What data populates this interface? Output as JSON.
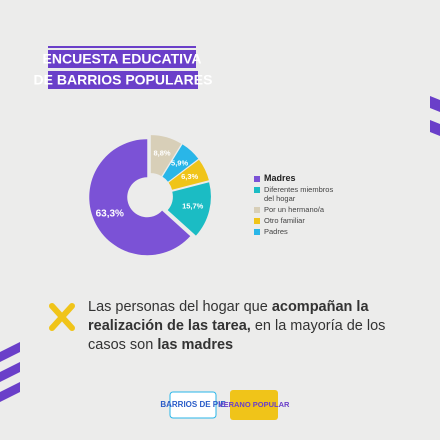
{
  "chart_data": {
    "type": "pie",
    "title": [
      "ENCUESTA EDUCATIVA",
      "DE BARRIOS POPULARES"
    ],
    "series": [
      {
        "name": "Madres",
        "color": "#7b52d6",
        "values": [
          63.3
        ],
        "value_labels": [
          "63,3%"
        ]
      },
      {
        "name": "Diferentes miembros del hogar",
        "color": "#1bbcc4",
        "values": [
          15.7
        ],
        "value_labels": [
          "15,7%"
        ]
      },
      {
        "name": "Por un hermano/a",
        "color": "#d8cfb8",
        "values": [
          8.8
        ],
        "value_labels": [
          "8,8%"
        ]
      },
      {
        "name": "Otro familiar",
        "color": "#f0c419",
        "values": [
          6.3
        ],
        "value_labels": [
          "6,3%"
        ]
      },
      {
        "name": "Padres",
        "color": "#29b6e8",
        "values": [
          5.9
        ],
        "value_labels": [
          "5,9%"
        ]
      }
    ]
  },
  "body": [
    {
      "text": "Las personas del hogar que ",
      "bold": false
    },
    {
      "text": "acompañan la realización de las tarea,",
      "bold": true
    },
    {
      "text": " en la mayoría de los casos son ",
      "bold": false
    },
    {
      "text": "las madres",
      "bold": true
    }
  ],
  "logos": [
    "BARRIOS DE PIE",
    "VERANO POPULAR"
  ]
}
